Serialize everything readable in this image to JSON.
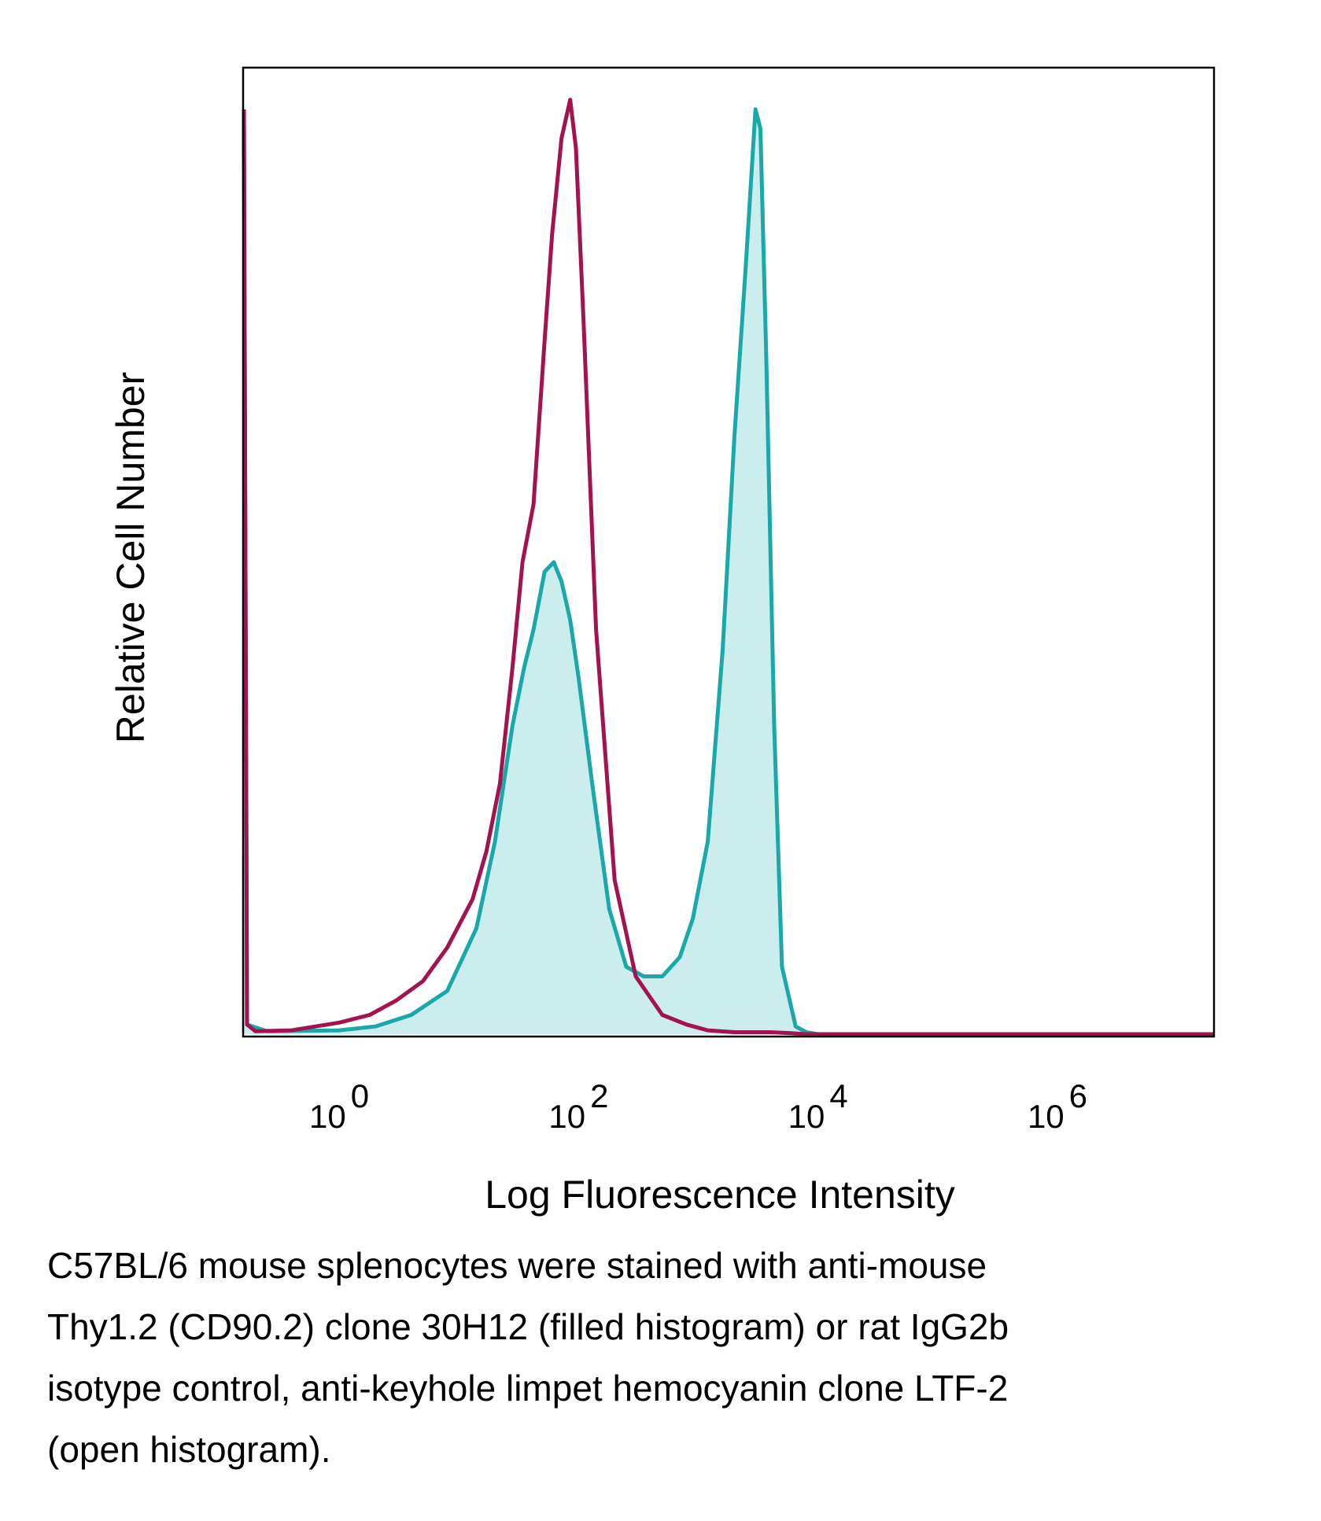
{
  "chart_data": {
    "type": "area",
    "xlabel": "Log Fluorescence Intensity",
    "ylabel": "Relative Cell Number",
    "x_scale": "log",
    "xlim": [
      0.16,
      20000000
    ],
    "ylim": [
      0,
      100
    ],
    "x_ticks": [
      {
        "base": "10",
        "exp": "0",
        "value": 1
      },
      {
        "base": "10",
        "exp": "2",
        "value": 100
      },
      {
        "base": "10",
        "exp": "4",
        "value": 10000
      },
      {
        "base": "10",
        "exp": "6",
        "value": 1000000
      }
    ],
    "grid": false,
    "legend": "none",
    "series": [
      {
        "style": "open",
        "color": "#a3134f",
        "x": [
          0.16,
          0.17,
          0.2,
          0.4,
          1,
          1.8,
          3,
          5,
          8,
          13,
          17,
          22,
          28,
          34,
          42,
          52,
          60,
          72,
          85,
          95,
          110,
          140,
          200,
          300,
          500,
          800,
          1200,
          2000,
          4000,
          6000,
          8000,
          20000000
        ],
        "y": [
          96,
          1,
          0.3,
          0.4,
          1.2,
          2,
          3.5,
          5.5,
          9,
          14,
          19,
          26,
          38,
          49,
          55,
          72,
          83,
          93,
          97,
          92,
          74,
          42,
          16,
          6,
          2,
          1,
          0.4,
          0.2,
          0.2,
          0.1,
          0,
          0
        ]
      },
      {
        "style": "filled",
        "color": "#1aa8a8",
        "fill": "#cbeded",
        "x": [
          0.16,
          0.17,
          0.25,
          1,
          2,
          4,
          8,
          14,
          20,
          28,
          35,
          42,
          52,
          62,
          72,
          85,
          100,
          130,
          180,
          250,
          350,
          500,
          700,
          900,
          1200,
          1600,
          2000,
          2500,
          3000,
          3300,
          3700,
          4300,
          5000,
          6500,
          8000,
          10000,
          20000000
        ],
        "y": [
          96,
          1,
          0.3,
          0.4,
          0.8,
          2,
          4.5,
          11,
          20,
          32,
          38,
          42,
          48,
          49,
          47,
          43,
          37,
          26,
          13,
          7,
          6,
          6,
          8,
          12,
          20,
          40,
          62,
          80,
          96,
          94,
          70,
          32,
          7,
          0.8,
          0.2,
          0,
          0
        ]
      }
    ]
  },
  "caption": {
    "line1": "C57BL/6 mouse splenocytes were stained with anti-mouse",
    "line2": "Thy1.2 (CD90.2) clone 30H12 (filled histogram) or rat IgG2b",
    "line3": "isotype control, anti-keyhole limpet hemocyanin clone LTF-2",
    "line4": "(open histogram)."
  }
}
